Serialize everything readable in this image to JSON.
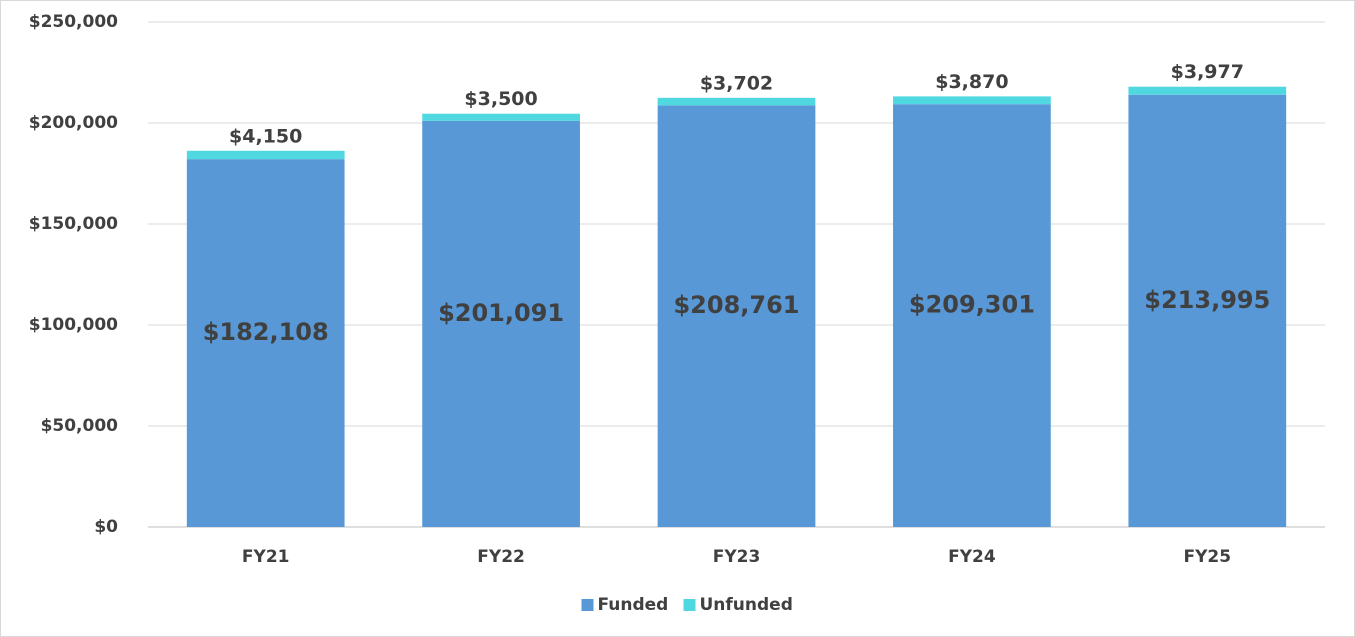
{
  "chart_data": {
    "type": "stacked_bar",
    "categories": [
      "FY21",
      "FY22",
      "FY23",
      "FY24",
      "FY25"
    ],
    "series": [
      {
        "name": "Funded",
        "color": "#5898d6",
        "values": [
          182108,
          201091,
          208761,
          209301,
          213995
        ],
        "value_labels": [
          "$182,108",
          "$201,091",
          "$208,761",
          "$209,301",
          "$213,995"
        ]
      },
      {
        "name": "Unfunded",
        "color": "#4fd8e0",
        "values": [
          4150,
          3500,
          3702,
          3870,
          3977
        ],
        "value_labels": [
          "$4,150",
          "$3,500",
          "$3,702",
          "$3,870",
          "$3,977"
        ]
      }
    ],
    "ylim": [
      0,
      250000
    ],
    "yticks": [
      {
        "value": 0,
        "label": "$0"
      },
      {
        "value": 50000,
        "label": "$50,000"
      },
      {
        "value": 100000,
        "label": "$100,000"
      },
      {
        "value": 150000,
        "label": "$150,000"
      },
      {
        "value": 200000,
        "label": "$200,000"
      },
      {
        "value": 250000,
        "label": "$250,000"
      }
    ],
    "grid": true,
    "legend": "bottom"
  }
}
